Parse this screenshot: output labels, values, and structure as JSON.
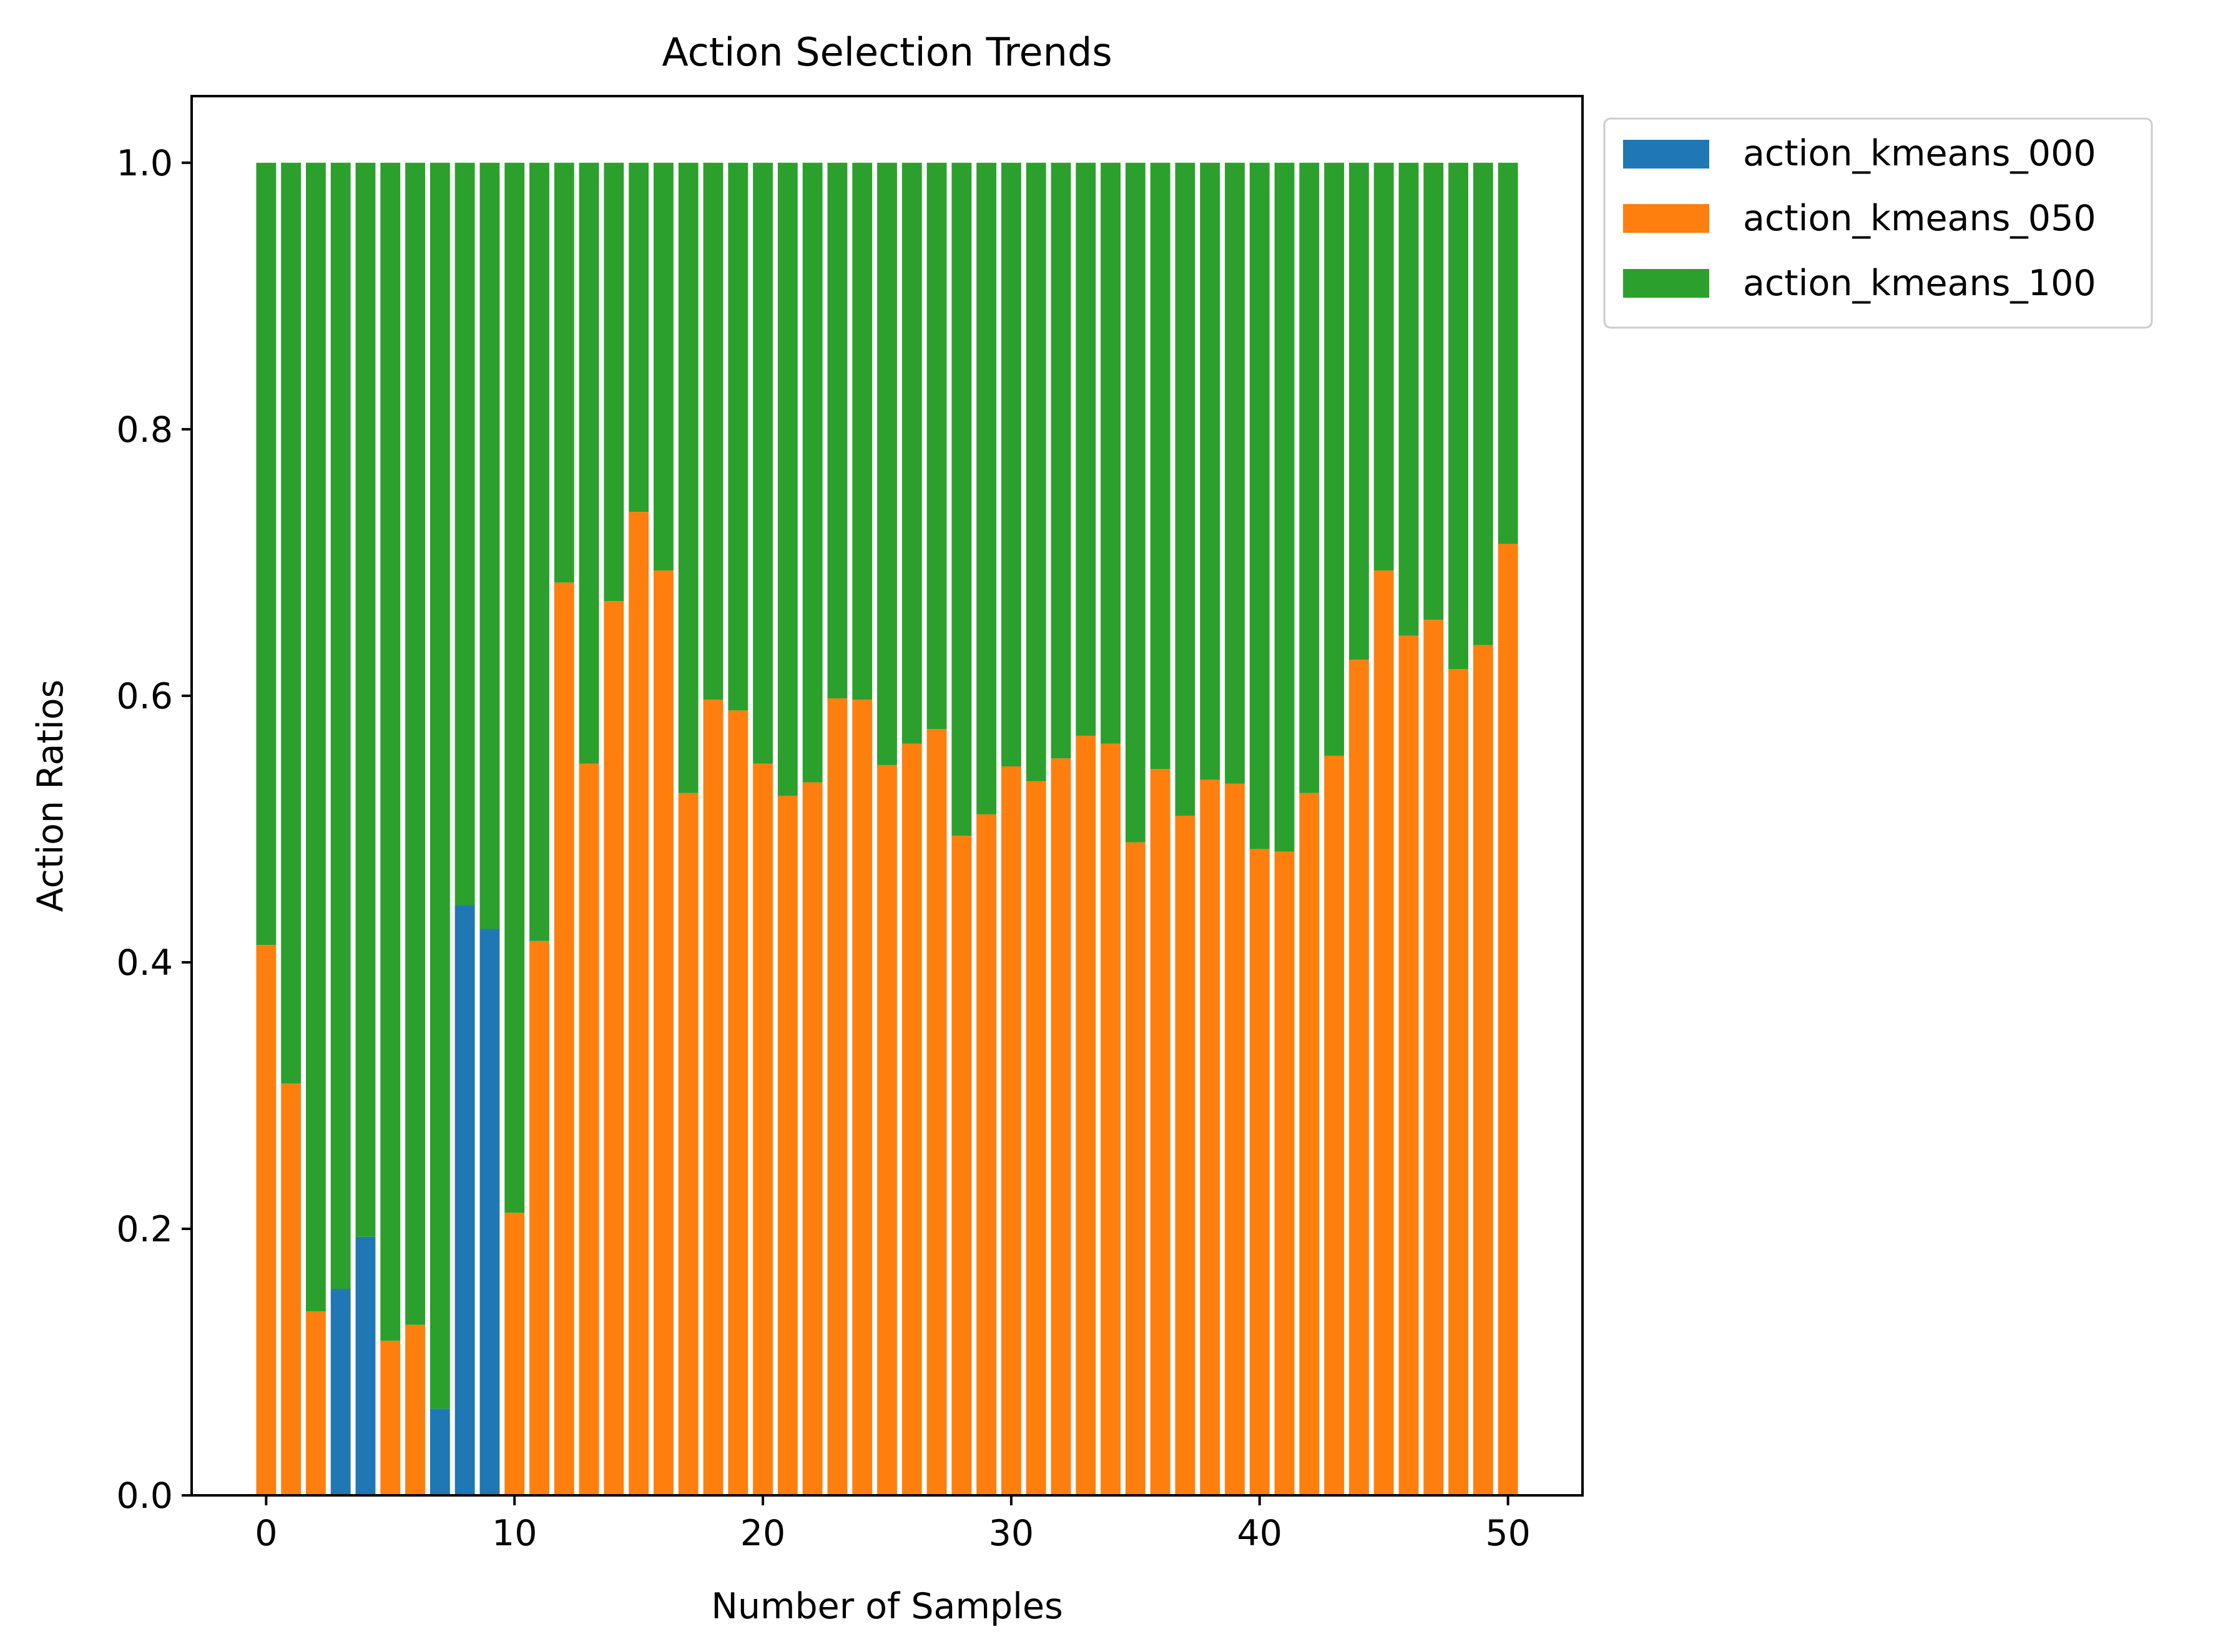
{
  "chart_data": {
    "type": "bar",
    "stacked": true,
    "title": "Action Selection Trends",
    "xlabel": "Number of Samples",
    "ylabel": "Action Ratios",
    "xlim": [
      -3,
      53
    ],
    "ylim": [
      0,
      1.05
    ],
    "xticks": [
      0,
      10,
      20,
      30,
      40,
      50
    ],
    "yticks": [
      0.0,
      0.2,
      0.4,
      0.6,
      0.8,
      1.0
    ],
    "xtick_labels": [
      "0",
      "10",
      "20",
      "30",
      "40",
      "50"
    ],
    "ytick_labels": [
      "0.0",
      "0.2",
      "0.4",
      "0.6",
      "0.8",
      "1.0"
    ],
    "grid": false,
    "legend_position": "outside-top-right",
    "x": [
      0,
      1,
      2,
      3,
      4,
      5,
      6,
      7,
      8,
      9,
      10,
      11,
      12,
      13,
      14,
      15,
      16,
      17,
      18,
      19,
      20,
      21,
      22,
      23,
      24,
      25,
      26,
      27,
      28,
      29,
      30,
      31,
      32,
      33,
      34,
      35,
      36,
      37,
      38,
      39,
      40,
      41,
      42,
      43,
      44,
      45,
      46,
      47,
      48,
      49,
      50
    ],
    "series": [
      {
        "name": "action_kmeans_000",
        "color": "#1f77b4",
        "values": [
          0,
          0,
          0,
          0.155,
          0.194,
          0,
          0,
          0.065,
          0.443,
          0.425,
          0,
          0,
          0,
          0,
          0,
          0,
          0,
          0,
          0,
          0,
          0,
          0,
          0,
          0,
          0,
          0,
          0,
          0,
          0,
          0,
          0,
          0,
          0,
          0,
          0,
          0,
          0,
          0,
          0,
          0,
          0,
          0,
          0,
          0,
          0,
          0,
          0,
          0,
          0,
          0,
          0
        ]
      },
      {
        "name": "action_kmeans_050",
        "color": "#ff7f0e",
        "values": [
          0.413,
          0.309,
          0.138,
          0,
          0,
          0.116,
          0.128,
          0,
          0,
          0,
          0.212,
          0.416,
          0.685,
          0.549,
          0.671,
          0.738,
          0.694,
          0.527,
          0.597,
          0.589,
          0.549,
          0.525,
          0.535,
          0.598,
          0.597,
          0.548,
          0.564,
          0.575,
          0.495,
          0.511,
          0.547,
          0.536,
          0.553,
          0.57,
          0.564,
          0.49,
          0.545,
          0.51,
          0.537,
          0.534,
          0.485,
          0.483,
          0.527,
          0.555,
          0.627,
          0.694,
          0.645,
          0.657,
          0.62,
          0.638,
          0.714
        ]
      },
      {
        "name": "action_kmeans_100",
        "color": "#2ca02c",
        "values": [
          0.587,
          0.691,
          0.862,
          0.845,
          0.806,
          0.884,
          0.872,
          0.935,
          0.557,
          0.575,
          0.788,
          0.584,
          0.315,
          0.451,
          0.329,
          0.262,
          0.306,
          0.473,
          0.403,
          0.411,
          0.451,
          0.475,
          0.465,
          0.402,
          0.403,
          0.452,
          0.436,
          0.425,
          0.505,
          0.489,
          0.453,
          0.464,
          0.447,
          0.43,
          0.436,
          0.51,
          0.455,
          0.49,
          0.463,
          0.466,
          0.515,
          0.517,
          0.473,
          0.445,
          0.373,
          0.306,
          0.355,
          0.343,
          0.38,
          0.362,
          0.286
        ]
      }
    ]
  }
}
